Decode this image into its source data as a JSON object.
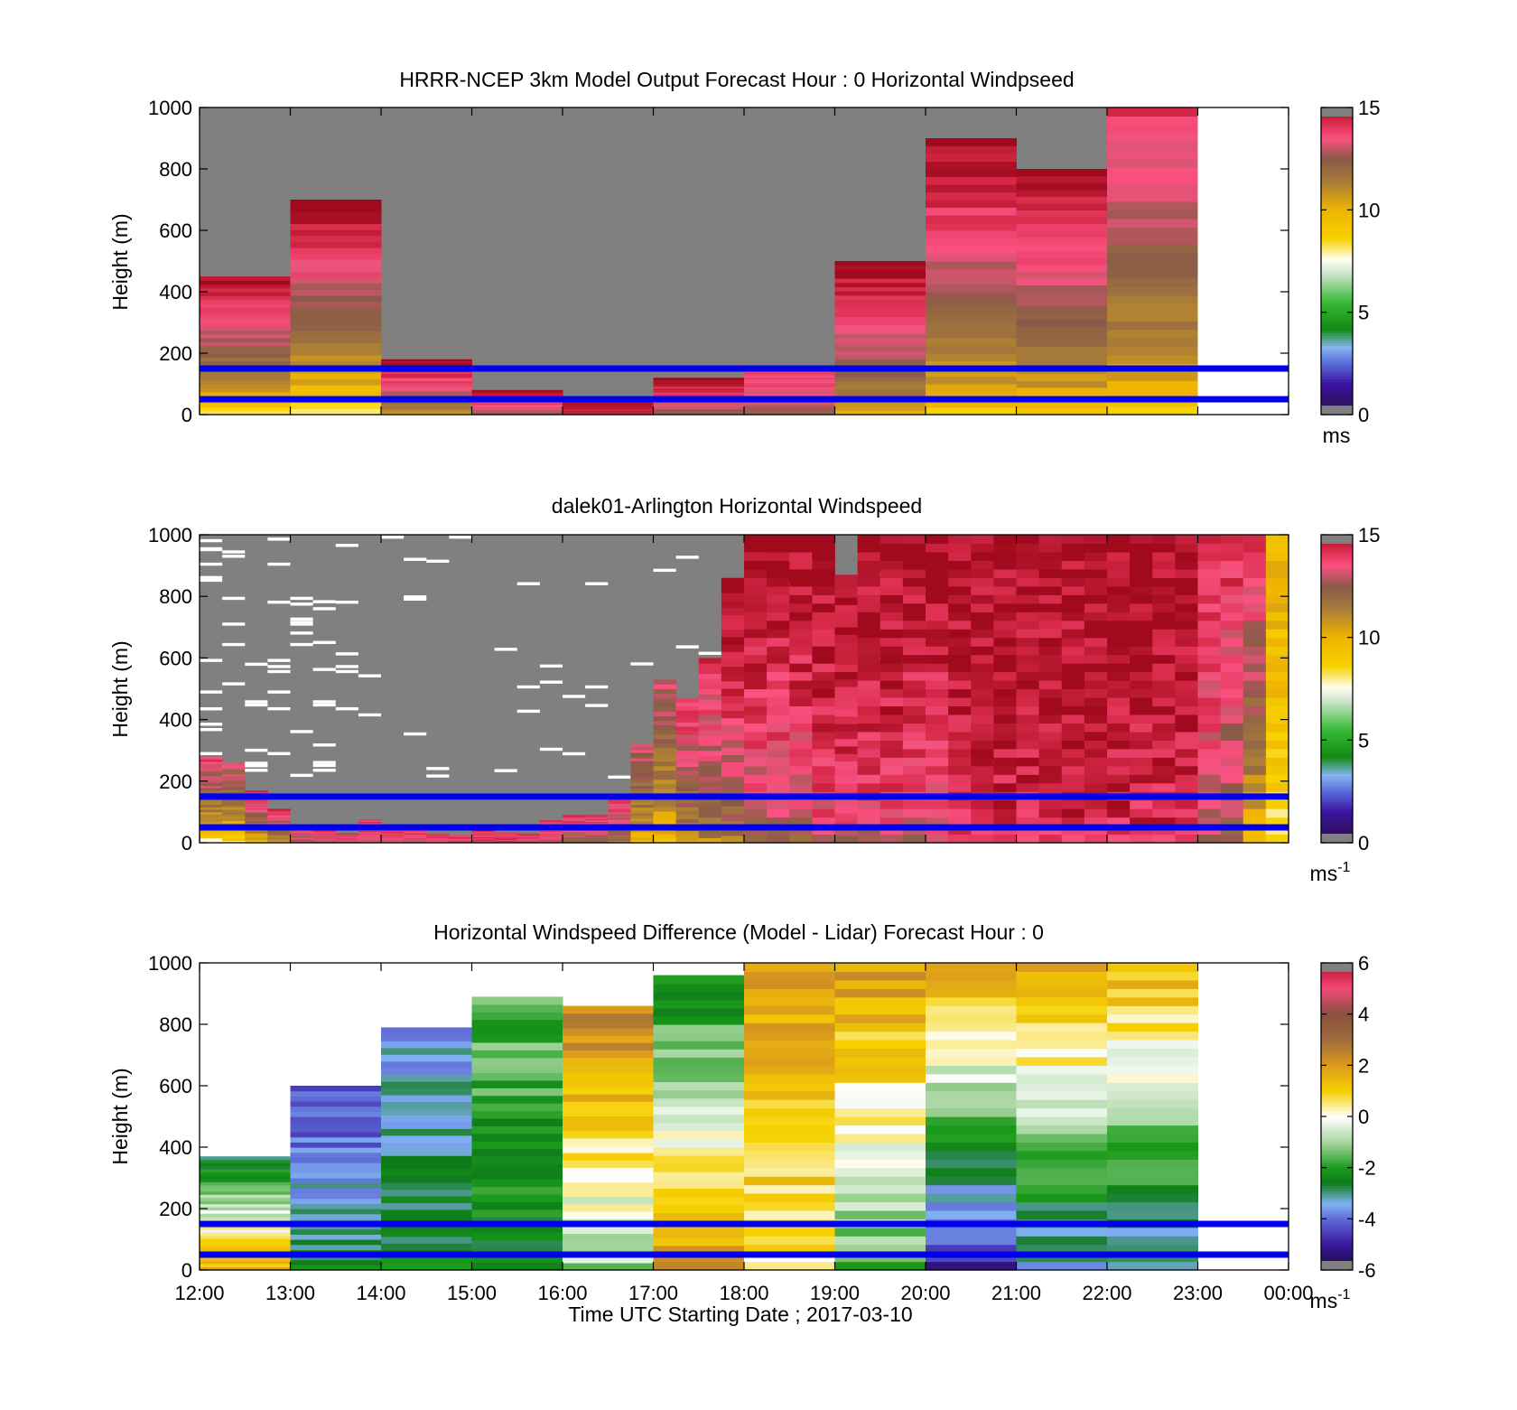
{
  "chart_data": [
    {
      "type": "heatmap",
      "title": "HRRR-NCEP 3km Model Output   Forecast Hour : 0 Horizontal Windpseed",
      "ylabel": "Height (m)",
      "ylim": [
        0,
        1000
      ],
      "yticks": [
        "0",
        "200",
        "400",
        "600",
        "800",
        "1000"
      ],
      "xlim_hours": [
        12,
        24
      ],
      "xticks": [
        "12:00",
        "13:00",
        "14:00",
        "15:00",
        "16:00",
        "17:00",
        "18:00",
        "19:00",
        "20:00",
        "21:00",
        "22:00",
        "23:00",
        "00:00"
      ],
      "show_xtick_labels": false,
      "colorbar": {
        "min": 0,
        "max": 15,
        "ticks": [
          "0",
          "5",
          "10",
          "15"
        ],
        "unit": "ms",
        "palette": "speed"
      },
      "reference_lines_m": [
        50,
        150
      ],
      "columns": [
        {
          "hour": 12,
          "top_m": 450,
          "bottom_speed": 8,
          "top_speed": 15
        },
        {
          "hour": 13,
          "top_m": 700,
          "bottom_speed": 8,
          "top_speed": 15
        },
        {
          "hour": 14,
          "top_m": 180,
          "bottom_speed": 10,
          "top_speed": 15
        },
        {
          "hour": 15,
          "top_m": 80,
          "bottom_speed": 12,
          "top_speed": 15
        },
        {
          "hour": 16,
          "top_m": 40,
          "bottom_speed": 14,
          "top_speed": 15
        },
        {
          "hour": 17,
          "top_m": 120,
          "bottom_speed": 12,
          "top_speed": 15
        },
        {
          "hour": 18,
          "top_m": 150,
          "bottom_speed": 12,
          "top_speed": 14
        },
        {
          "hour": 19,
          "top_m": 500,
          "bottom_speed": 10,
          "top_speed": 15
        },
        {
          "hour": 20,
          "top_m": 900,
          "bottom_speed": 9,
          "top_speed": 15
        },
        {
          "hour": 21,
          "top_m": 800,
          "bottom_speed": 9,
          "top_speed": 15
        },
        {
          "hour": 22,
          "top_m": 1000,
          "bottom_speed": 9,
          "top_speed": 14
        },
        {
          "hour": 23,
          "top_m": 0,
          "bottom_speed": 0,
          "top_speed": 0
        }
      ]
    },
    {
      "type": "heatmap",
      "title": "dalek01-Arlington  Horizontal Windspeed",
      "ylabel": "Height (m)",
      "ylim": [
        0,
        1000
      ],
      "yticks": [
        "0",
        "200",
        "400",
        "600",
        "800",
        "1000"
      ],
      "xlim_hours": [
        12,
        24
      ],
      "xticks": [
        "12:00",
        "13:00",
        "14:00",
        "15:00",
        "16:00",
        "17:00",
        "18:00",
        "19:00",
        "20:00",
        "21:00",
        "22:00",
        "23:00",
        "00:00"
      ],
      "show_xtick_labels": false,
      "colorbar": {
        "min": 0,
        "max": 15,
        "ticks": [
          "0",
          "5",
          "10",
          "15"
        ],
        "unit": "ms",
        "unit_sup": "-1",
        "palette": "speed"
      },
      "reference_lines_m": [
        50,
        150
      ],
      "sub_columns_per_hour": 4,
      "column_top_m": [
        280,
        260,
        170,
        110,
        60,
        40,
        30,
        75,
        40,
        50,
        30,
        25,
        40,
        35,
        30,
        75,
        90,
        90,
        140,
        320,
        530,
        470,
        600,
        860,
        1000,
        1000,
        1000,
        1000,
        870,
        1000,
        1000,
        1000,
        1000,
        1000,
        1000,
        1000,
        1000,
        1000,
        1000,
        1000,
        1000,
        1000,
        1000,
        1000,
        1000,
        1000,
        1000,
        1000
      ],
      "column_bottom_speed": [
        7,
        8,
        9,
        10,
        12,
        12,
        13,
        13,
        13,
        13,
        13,
        14,
        14,
        14,
        13,
        13,
        12,
        12,
        11,
        9,
        9,
        10,
        11,
        11,
        12,
        12,
        12,
        13,
        13,
        13,
        13,
        13,
        13,
        14,
        14,
        14,
        14,
        14,
        14,
        14,
        14,
        14,
        14,
        14,
        13,
        12,
        9,
        8
      ],
      "column_top_speed": [
        14,
        13,
        14,
        14,
        14,
        14,
        14,
        14,
        14,
        14,
        14,
        14,
        14,
        14,
        14,
        14,
        14,
        14,
        14,
        13,
        13,
        14,
        14,
        15,
        15,
        15,
        15,
        15,
        15,
        15,
        15,
        15,
        15,
        15,
        15,
        15,
        15,
        15,
        15,
        15,
        15,
        15,
        15,
        15,
        14,
        14,
        14,
        10
      ]
    },
    {
      "type": "heatmap",
      "title": "Horizontal Windspeed Difference (Model - Lidar) Forecast Hour : 0",
      "ylabel": "Height (m)",
      "xlabel": "Time UTC  Starting Date ; 2017-03-10",
      "ylim": [
        0,
        1000
      ],
      "yticks": [
        "0",
        "200",
        "400",
        "600",
        "800",
        "1000"
      ],
      "xlim_hours": [
        12,
        24
      ],
      "xticks": [
        "12:00",
        "13:00",
        "14:00",
        "15:00",
        "16:00",
        "17:00",
        "18:00",
        "19:00",
        "20:00",
        "21:00",
        "22:00",
        "23:00",
        "00:00"
      ],
      "show_xtick_labels": true,
      "colorbar": {
        "min": -6,
        "max": 6,
        "ticks": [
          "-6",
          "-4",
          "-2",
          "0",
          "2",
          "4",
          "6"
        ],
        "unit": "ms",
        "unit_sup": "-1",
        "palette": "diff"
      },
      "reference_lines_m": [
        50,
        150
      ],
      "columns": [
        {
          "hour": 12,
          "top_m": 370,
          "bottom_diff": 1.5,
          "top_diff": -2.5
        },
        {
          "hour": 13,
          "top_m": 600,
          "bottom_diff": -2.5,
          "top_diff": -4.5
        },
        {
          "hour": 14,
          "top_m": 790,
          "bottom_diff": -2.5,
          "top_diff": -3.5
        },
        {
          "hour": 15,
          "top_m": 890,
          "bottom_diff": -2.5,
          "top_diff": -1.5
        },
        {
          "hour": 16,
          "top_m": 860,
          "bottom_diff": -1.0,
          "top_diff": 2.5
        },
        {
          "hour": 17,
          "top_m": 960,
          "bottom_diff": 2.0,
          "top_diff": -2.5
        },
        {
          "hour": 18,
          "top_m": 1000,
          "bottom_diff": 0.5,
          "top_diff": 2.0
        },
        {
          "hour": 19,
          "top_m": 1000,
          "bottom_diff": -1.5,
          "top_diff": 2.0
        },
        {
          "hour": 20,
          "top_m": 1000,
          "bottom_diff": -5.0,
          "top_diff": 2.0
        },
        {
          "hour": 21,
          "top_m": 1000,
          "bottom_diff": -3.5,
          "top_diff": 2.0
        },
        {
          "hour": 22,
          "top_m": 1000,
          "bottom_diff": -3.5,
          "top_diff": 1.5
        },
        {
          "hour": 23,
          "top_m": 0,
          "bottom_diff": 0,
          "top_diff": 0
        }
      ]
    }
  ]
}
